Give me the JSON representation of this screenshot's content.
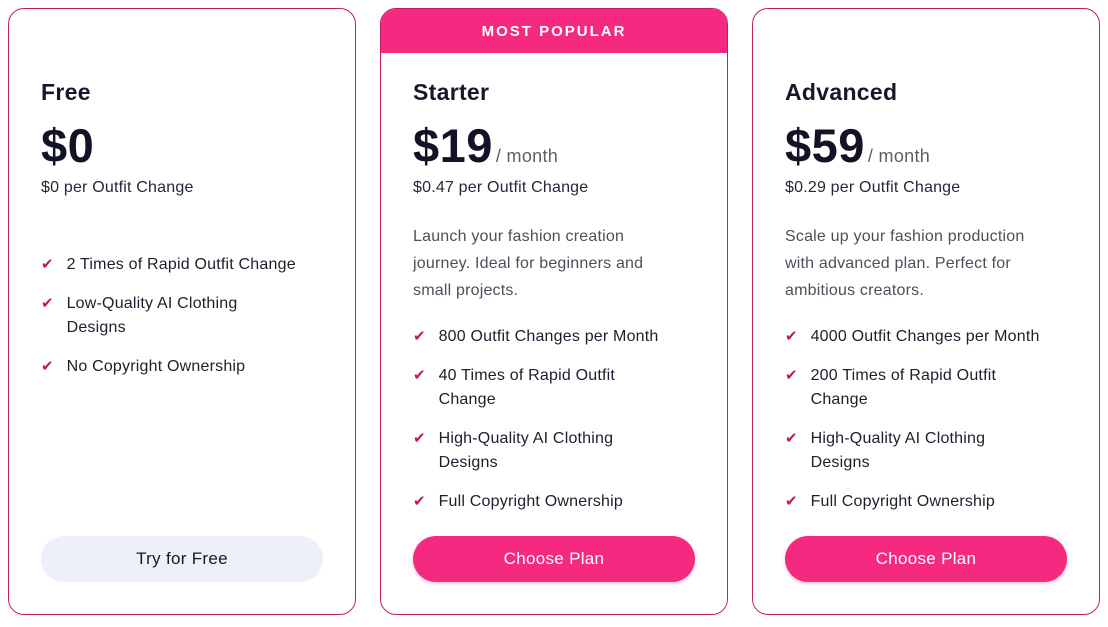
{
  "icons": {
    "check": "✔"
  },
  "colors": {
    "accent_pink": "#F5297F",
    "border_pink": "#C11E62",
    "check_pink": "#C2185B",
    "title_dark": "#171729",
    "muted_gray": "#5E5E6B",
    "secondary_button_bg": "#EDF0F8"
  },
  "cards": [
    {
      "title": "Free",
      "price": "$0",
      "period": "",
      "unit_price": "$0 per Outfit Change",
      "description": "",
      "features": [
        "2 Times of Rapid Outfit Change",
        "Low-Quality AI Clothing Designs",
        "No Copyright Ownership"
      ],
      "cta_label": "Try for Free"
    },
    {
      "banner": "MOST POPULAR",
      "title": "Starter",
      "price": "$19",
      "period": "/ month",
      "unit_price": "$0.47 per Outfit Change",
      "description": "Launch your fashion creation journey. Ideal for beginners and small projects.",
      "features": [
        "800 Outfit Changes per Month",
        "40 Times of Rapid Outfit Change",
        "High-Quality AI Clothing Designs",
        "Full Copyright Ownership"
      ],
      "cta_label": "Choose Plan"
    },
    {
      "title": "Advanced",
      "price": "$59",
      "period": "/ month",
      "unit_price": "$0.29 per Outfit Change",
      "description": "Scale up your fashion production with advanced plan. Perfect for ambitious creators.",
      "features": [
        "4000 Outfit Changes per Month",
        "200 Times of Rapid Outfit Change",
        "High-Quality AI Clothing Designs",
        "Full Copyright Ownership"
      ],
      "cta_label": "Choose Plan"
    }
  ]
}
